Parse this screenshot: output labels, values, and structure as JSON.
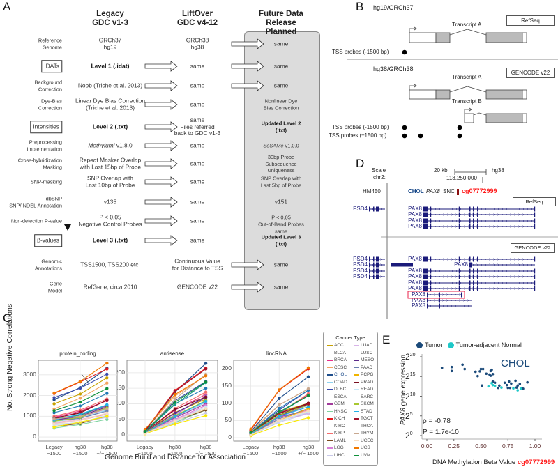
{
  "panel_labels": {
    "a": "A",
    "b": "B",
    "c": "C",
    "d": "D",
    "e": "E"
  },
  "panel_a": {
    "headers": {
      "legacy": "Legacy\nGDC v1-3",
      "liftover": "LiftOver\nGDC v4-12",
      "future": "Future Data\nRelease Planned"
    },
    "rows": [
      {
        "label": "Reference\nGenome",
        "legacy": "GRCh37\nhg19",
        "liftover": "GRCh38\nhg38",
        "future": "same",
        "arrow1": false,
        "arrow2": true
      },
      {
        "label": "IDATs",
        "boxed": true,
        "legacy": "Level 1 (.idat)",
        "legacy_bold": true,
        "liftover": "same",
        "future": "same",
        "arrow1": true,
        "arrow2": true
      },
      {
        "label": "Background\nCorrection",
        "legacy": "Noob (Triche et al. 2013)",
        "liftover": "same",
        "future": "same",
        "arrow1": true,
        "arrow2": true
      },
      {
        "label": "Dye-Bias\nCorrection",
        "legacy": "Linear Dye Bias Correction\n(Triche et al. 2013)",
        "liftover": "same",
        "future": "Nonlinear Dye\nBias Correction",
        "arrow1": true,
        "arrow2": false
      },
      {
        "label": "Intensities",
        "boxed": true,
        "legacy": "Level 2 (.txt)",
        "legacy_bold": true,
        "liftover": "same\nFiles referred\nback to GDC v1-3",
        "future": "Updated Level 2 (.txt)",
        "future_bold": true,
        "arrow1": true,
        "arrow2": false
      },
      {
        "label": "Preprocessing\nImplementation",
        "legacy_em": "Methylumi",
        "legacy": " v1.8.0",
        "liftover": "same",
        "future_em": "SeSAMe",
        "future": " v1.0.0",
        "arrow1": true,
        "arrow2": false
      },
      {
        "label": "Cross-hybridization\nMasking",
        "legacy": "Repeat Masker Overlap\nwith Last 15bp of Probe",
        "liftover": "same",
        "future": "30bp Probe Subsequence\nUniqueness",
        "arrow1": true,
        "arrow2": false
      },
      {
        "label": "SNP-masking",
        "legacy": "SNP Overlap with\nLast 10bp of Probe",
        "liftover": "same",
        "future": "SNP Overlap with\nLast 5bp of Probe",
        "arrow1": true,
        "arrow2": false
      },
      {
        "label": "dbSNP\nSNP/INDEL Annotation",
        "legacy": "v135",
        "liftover": "same",
        "future": "v151",
        "arrow1": true,
        "arrow2": false
      },
      {
        "label": "Non-detection P-value",
        "legacy": "P < 0.05\nNegative Control Probes",
        "liftover": "same",
        "future": "P < 0.05\nOut-of-Band Probes",
        "future_overlay": "same",
        "arrow1": true,
        "arrow2": false
      },
      {
        "label": "β-values",
        "boxed": true,
        "legacy": "Level 3 (.txt)",
        "legacy_bold": true,
        "liftover": "same",
        "future": "Updated Level 3 (.txt)",
        "future_bold": true,
        "arrow1": true,
        "arrow2": false
      },
      {
        "label": "Genomic\nAnnotations",
        "legacy": "TSS1500, TSS200 etc.",
        "liftover": "Continuous Value\nfor Distance to TSS",
        "future": "same",
        "arrow1": false,
        "arrow2": true
      },
      {
        "label": "Gene\nModel",
        "legacy": "RefGene, circa 2010",
        "liftover": "GENCODE v22",
        "future": "same",
        "arrow1": false,
        "arrow2": true
      }
    ]
  },
  "panel_b": {
    "hg19": "hg19/GRCh37",
    "hg38": "hg38/GRCh38",
    "refseq": "RefSeq",
    "gencode": "GENCODE v22",
    "transcript_a": "Transcript A",
    "transcript_b": "Transcript B",
    "tss_minus": "TSS probes (-1500 bp)",
    "tss_pm": "TSS probes (±1500 bp)"
  },
  "panel_d": {
    "scale": "Scale",
    "chr": "chr2:",
    "scale_bar": "20 kb",
    "assembly": "hg38",
    "position": "113,250,000",
    "track": "HM450",
    "chol": "CHOL",
    "gene_em": "PAX8",
    "snc": "SNC",
    "probe": "cg07772999",
    "refseq": "RefSeq",
    "gencode": "GENCODE v22",
    "psd4": "PSD4",
    "pax8": "PAX8",
    "colors": {
      "gene": "#1a1a7a",
      "probe": "#ff1a1a",
      "highlight": "#e8204a"
    }
  },
  "chart_data": [
    {
      "type": "line",
      "ylabel": "No. Strong Negative Correlations",
      "xlabel": "Genome Build and Distance for Association",
      "categories": [
        "Legacy\n−1500",
        "hg38\n−1500",
        "hg38\n+/− 1500"
      ],
      "annotation": "CHOL",
      "legend_title": "Cancer Type",
      "legend_placement": "right",
      "grid": true,
      "types": [
        "ACC",
        "BLCA",
        "BRCA",
        "CESC",
        "CHOL",
        "COAD",
        "DLBC",
        "ESCA",
        "GBM",
        "HNSC",
        "KICH",
        "KIRC",
        "KIRP",
        "LAML",
        "LGG",
        "LIHC",
        "LUAD",
        "LUSC",
        "MESO",
        "PAAD",
        "PCPG",
        "PRAD",
        "READ",
        "SARC",
        "SKCM",
        "STAD",
        "TGCT",
        "THCA",
        "THYM",
        "UCEC",
        "UCS",
        "UVM"
      ],
      "colors": [
        "#c8a200",
        "#f4b6c8",
        "#e8308a",
        "#f4a460",
        "#1f4e8c",
        "#8fd3f0",
        "#3949ab",
        "#1f78b4",
        "#a23b9b",
        "#7fd3a0",
        "#e41a1c",
        "#f4a4a4",
        "#f46d6d",
        "#7b4a1e",
        "#d77fd7",
        "#c8c8e8",
        "#d8b4e8",
        "#9b72cf",
        "#5b2a8a",
        "#6a7fb0",
        "#f0b400",
        "#7a1020",
        "#c8e8f8",
        "#1a9a8a",
        "#a8c830",
        "#20b0e8",
        "#a0122a",
        "#f8e800",
        "#c8a890",
        "#f8dcc0",
        "#f07800",
        "#10903a"
      ],
      "panels": [
        {
          "title": "protein_coding",
          "ylim": [
            -200,
            3700
          ],
          "yticks": [
            0,
            1000,
            2000,
            3000
          ],
          "series": [
            [
              1600,
              2070,
              2850
            ],
            [
              700,
              850,
              1100
            ],
            [
              950,
              1250,
              1750
            ],
            [
              1350,
              1870,
              2600
            ],
            [
              1800,
              2380,
              3320
            ],
            [
              750,
              900,
              1300
            ],
            [
              1900,
              2350,
              3030
            ],
            [
              1170,
              1500,
              2100
            ],
            [
              870,
              1050,
              1500
            ],
            [
              430,
              600,
              850
            ],
            [
              2100,
              2650,
              3280
            ],
            [
              660,
              800,
              1100
            ],
            [
              1000,
              1300,
              1830
            ],
            [
              500,
              650,
              1000
            ],
            [
              800,
              950,
              1350
            ],
            [
              600,
              700,
              950
            ],
            [
              650,
              800,
              1150
            ],
            [
              800,
              950,
              1400
            ],
            [
              820,
              1000,
              1450
            ],
            [
              780,
              900,
              1250
            ],
            [
              500,
              700,
              1000
            ],
            [
              920,
              1150,
              1780
            ],
            [
              550,
              700,
              1050
            ],
            [
              900,
              1050,
              1550
            ],
            [
              760,
              950,
              1400
            ],
            [
              820,
              1100,
              1550
            ],
            [
              880,
              1200,
              1760
            ],
            [
              480,
              720,
              1000
            ],
            [
              870,
              1000,
              1350
            ],
            [
              620,
              800,
              1150
            ],
            [
              2120,
              2680,
              3560
            ],
            [
              1270,
              1680,
              2340
            ]
          ]
        },
        {
          "title": "antisense",
          "ylim": [
            -20,
            240
          ],
          "yticks": [
            0,
            50,
            100,
            150,
            200
          ],
          "series": [
            [
              12,
              72,
              115
            ],
            [
              8,
              50,
              95
            ],
            [
              10,
              80,
              130
            ],
            [
              15,
              125,
              190
            ],
            [
              12,
              138,
              230
            ],
            [
              6,
              55,
              105
            ],
            [
              12,
              110,
              172
            ],
            [
              10,
              100,
              150
            ],
            [
              8,
              55,
              100
            ],
            [
              5,
              40,
              80
            ],
            [
              14,
              143,
              215
            ],
            [
              7,
              60,
              135
            ],
            [
              9,
              85,
              138
            ],
            [
              6,
              45,
              80
            ],
            [
              7,
              50,
              95
            ],
            [
              5,
              38,
              70
            ],
            [
              6,
              48,
              90
            ],
            [
              8,
              65,
              125
            ],
            [
              9,
              70,
              120
            ],
            [
              7,
              58,
              110
            ],
            [
              6,
              45,
              85
            ],
            [
              11,
              82,
              122
            ],
            [
              5,
              42,
              90
            ],
            [
              10,
              98,
              168
            ],
            [
              8,
              62,
              110
            ],
            [
              7,
              60,
              108
            ],
            [
              13,
              140,
              212
            ],
            [
              4,
              35,
              62
            ],
            [
              9,
              115,
              195
            ],
            [
              5,
              45,
              85
            ],
            [
              18,
              130,
              190
            ],
            [
              11,
              105,
              170
            ]
          ]
        },
        {
          "title": "lincRNA",
          "ylim": [
            -10,
            225
          ],
          "yticks": [
            0,
            50,
            100,
            150,
            200
          ],
          "series": [
            [
              18,
              75,
              100
            ],
            [
              10,
              55,
              80
            ],
            [
              15,
              70,
              125
            ],
            [
              20,
              95,
              142
            ],
            [
              18,
              114,
              177
            ],
            [
              9,
              60,
              90
            ],
            [
              17,
              80,
              138
            ],
            [
              15,
              85,
              138
            ],
            [
              10,
              60,
              80
            ],
            [
              8,
              48,
              75
            ],
            [
              22,
              138,
              200
            ],
            [
              10,
              55,
              80
            ],
            [
              14,
              70,
              128
            ],
            [
              8,
              66,
              100
            ],
            [
              12,
              50,
              70
            ],
            [
              7,
              45,
              70
            ],
            [
              9,
              50,
              72
            ],
            [
              12,
              60,
              95
            ],
            [
              11,
              62,
              98
            ],
            [
              10,
              55,
              85
            ],
            [
              9,
              50,
              85
            ],
            [
              13,
              70,
              100
            ],
            [
              8,
              48,
              75
            ],
            [
              15,
              72,
              122
            ],
            [
              12,
              65,
              95
            ],
            [
              11,
              62,
              90
            ],
            [
              14,
              72,
              98
            ],
            [
              6,
              36,
              58
            ],
            [
              16,
              95,
              142
            ],
            [
              8,
              50,
              78
            ],
            [
              25,
              139,
              203
            ],
            [
              15,
              75,
              122
            ]
          ]
        }
      ]
    },
    {
      "type": "scatter",
      "title": "CHOL",
      "xlabel": "DNA Methylation Beta Value ",
      "xlabel_probe": "cg07772999",
      "ylabel_em": "PAX8",
      "ylabel": " gene expression",
      "xlim": [
        0,
        1
      ],
      "ylim_log2": [
        0,
        20
      ],
      "xticks": [
        "0.00",
        "0.25",
        "0.50",
        "0.75",
        "1.00"
      ],
      "yticks_log2": [
        0,
        5,
        10,
        15,
        20
      ],
      "stats": {
        "rho": "ρ = -0.78",
        "p": "P = 1.7e-10"
      },
      "legend": [
        {
          "name": "Tumor",
          "color": "#1b4a7a"
        },
        {
          "name": "Tumor-adjacent Normal",
          "color": "#1ec8c8"
        }
      ],
      "tumor": [
        [
          0.14,
          17.2
        ],
        [
          0.23,
          17.4
        ],
        [
          0.23,
          16.4
        ],
        [
          0.33,
          18
        ],
        [
          0.35,
          16.9
        ],
        [
          0.45,
          16.2
        ],
        [
          0.47,
          15.1
        ],
        [
          0.49,
          16.3
        ],
        [
          0.5,
          16.9
        ],
        [
          0.52,
          16.9
        ],
        [
          0.51,
          12.7
        ],
        [
          0.55,
          15.7
        ],
        [
          0.58,
          15.5
        ],
        [
          0.59,
          16.4
        ],
        [
          0.6,
          16.7
        ],
        [
          0.59,
          15.2
        ],
        [
          0.61,
          15.6
        ],
        [
          0.61,
          13.7
        ],
        [
          0.63,
          13.4
        ],
        [
          0.66,
          12.1
        ],
        [
          0.67,
          12.7
        ],
        [
          0.72,
          13.4
        ],
        [
          0.74,
          12.8
        ],
        [
          0.75,
          12.1
        ],
        [
          0.76,
          13.7
        ],
        [
          0.77,
          12.1
        ],
        [
          0.78,
          13.2
        ],
        [
          0.82,
          13.9
        ],
        [
          0.83,
          12.2
        ],
        [
          0.84,
          12.7
        ],
        [
          0.86,
          13.1
        ],
        [
          0.88,
          12.1
        ],
        [
          0.89,
          11.9
        ],
        [
          0.93,
          13.5
        ]
      ],
      "normal": [
        [
          0.57,
          12.5
        ],
        [
          0.6,
          13.3
        ],
        [
          0.61,
          12.8
        ],
        [
          0.63,
          12.6
        ],
        [
          0.69,
          12.2
        ],
        [
          0.8,
          12.0
        ],
        [
          0.84,
          11.5
        ],
        [
          0.87,
          11.9
        ]
      ]
    }
  ]
}
